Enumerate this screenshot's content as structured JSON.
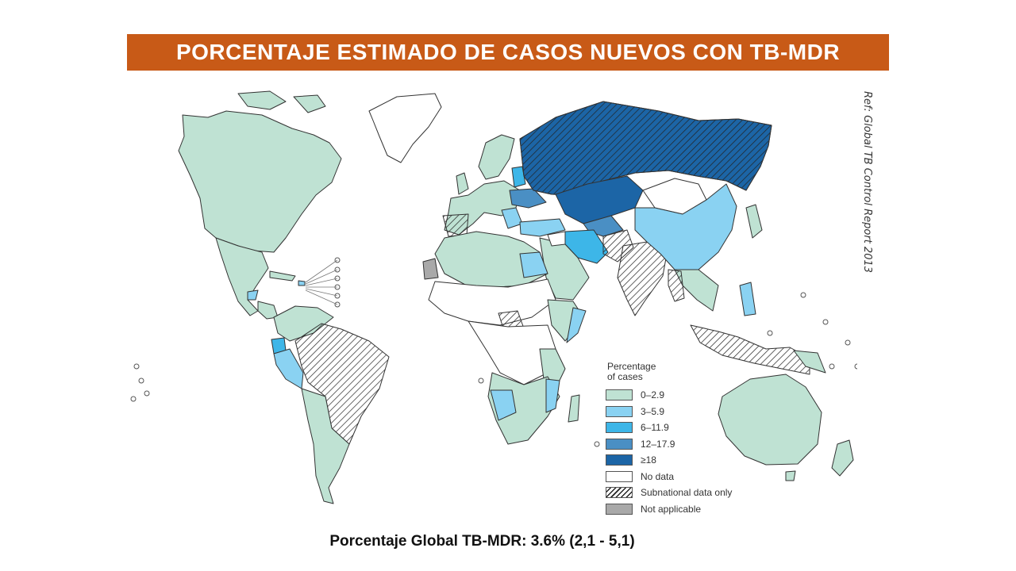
{
  "title": "PORCENTAJE ESTIMADO DE CASOS NUEVOS CON TB-MDR",
  "reference": "Ref: Global TB Control Report 2013",
  "footer": "Porcentaje Global TB-MDR: 3.6% (2,1 - 5,1)",
  "colors": {
    "banner": "#c85a17",
    "c0": "#bfe2d3",
    "c1": "#8ad2f2",
    "c2": "#3db6e8",
    "c3": "#4a8fc4",
    "c4": "#1c65a6",
    "nodata": "#ffffff",
    "na": "#a9a9a9"
  },
  "legend": {
    "title_line1": "Percentage",
    "title_line2": "of cases",
    "items": [
      {
        "label": "0–2.9",
        "color": "#bfe2d3"
      },
      {
        "label": "3–5.9",
        "color": "#8ad2f2"
      },
      {
        "label": "6–11.9",
        "color": "#3db6e8"
      },
      {
        "label": "12–17.9",
        "color": "#4a8fc4"
      },
      {
        "label": "≥18",
        "color": "#1c65a6"
      },
      {
        "label": "No data",
        "color": "#ffffff"
      },
      {
        "label": "Subnational data only",
        "color": "hatch"
      },
      {
        "label": "Not applicable",
        "color": "#a9a9a9"
      }
    ]
  }
}
